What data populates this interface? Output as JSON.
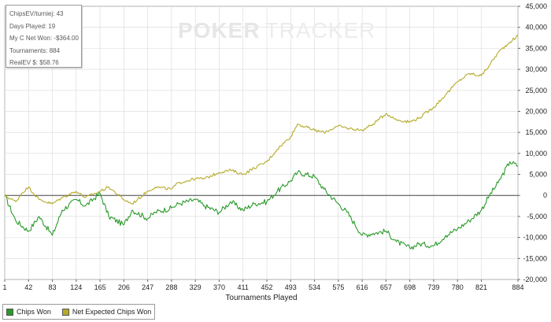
{
  "stats": {
    "chips_ev": "ChipsEV/turniej: 43",
    "days_played": "Days Played: 19",
    "net_won": "My C Net Won: -$364.00",
    "tournaments": "Tournaments: 884",
    "real_ev": "RealEV $: $58.76"
  },
  "watermark": {
    "part1": "POKER",
    "part2": "TRACKER"
  },
  "colors": {
    "chips_won": "#2a9a2a",
    "net_expected": "#b5aa2a",
    "zero_line": "#444444",
    "grid": "#d8d8d8"
  },
  "chart_data": {
    "type": "line",
    "xlabel": "Tournaments Played",
    "ylabel": "",
    "xlim": [
      1,
      884
    ],
    "ylim": [
      -20000,
      45000
    ],
    "x_ticks": [
      1,
      42,
      83,
      124,
      165,
      206,
      247,
      288,
      329,
      370,
      411,
      452,
      493,
      534,
      575,
      616,
      657,
      698,
      739,
      780,
      821,
      884
    ],
    "y_ticks": [
      "45,000",
      "40,000",
      "35,000",
      "30,000",
      "25,000",
      "20,000",
      "15,000",
      "10,000",
      "5,000",
      "0",
      "-5,000",
      "-10,000",
      "-15,000",
      "-20,000"
    ],
    "y_tick_values": [
      45000,
      40000,
      35000,
      30000,
      25000,
      20000,
      15000,
      10000,
      5000,
      0,
      -5000,
      -10000,
      -15000,
      -20000
    ],
    "grid": true,
    "legend": "bottom-left",
    "series": [
      {
        "name": "Chips Won",
        "color": "#2a9a2a",
        "x": [
          1,
          20,
          42,
          60,
          83,
          100,
          124,
          140,
          165,
          180,
          206,
          220,
          247,
          260,
          288,
          300,
          329,
          345,
          370,
          390,
          411,
          430,
          452,
          470,
          493,
          505,
          534,
          550,
          575,
          590,
          616,
          635,
          657,
          675,
          698,
          715,
          739,
          760,
          780,
          800,
          821,
          835,
          850,
          870,
          884
        ],
        "y": [
          0,
          -6000,
          -8500,
          -5000,
          -9500,
          -3500,
          -1000,
          -2500,
          500,
          -5000,
          -7000,
          -3500,
          -5500,
          -4000,
          -3000,
          -2000,
          -1000,
          -2500,
          -4000,
          -1500,
          -3500,
          -2000,
          -1500,
          1000,
          3500,
          5500,
          4500,
          1500,
          -2000,
          -4000,
          -9500,
          -9000,
          -8500,
          -11000,
          -12500,
          -11500,
          -12000,
          -9500,
          -8000,
          -6000,
          -3500,
          0,
          3000,
          8000,
          7000
        ]
      },
      {
        "name": "Net Expected Chips Won",
        "color": "#b5aa2a",
        "x": [
          1,
          20,
          30,
          42,
          60,
          83,
          100,
          124,
          140,
          165,
          180,
          206,
          220,
          247,
          260,
          288,
          300,
          329,
          345,
          370,
          390,
          411,
          430,
          452,
          470,
          493,
          505,
          534,
          550,
          575,
          590,
          616,
          635,
          657,
          675,
          698,
          715,
          739,
          760,
          780,
          800,
          821,
          835,
          850,
          870,
          884
        ],
        "y": [
          0,
          -1500,
          500,
          2000,
          -1000,
          -2000,
          -500,
          1000,
          -500,
          1000,
          2000,
          -1000,
          -2000,
          1000,
          2000,
          1500,
          3000,
          4000,
          4000,
          5500,
          6000,
          5000,
          6500,
          8000,
          11000,
          14000,
          17000,
          15500,
          15000,
          16500,
          16000,
          15500,
          17000,
          19500,
          18000,
          17500,
          18500,
          21000,
          24000,
          27000,
          29000,
          28500,
          31000,
          34000,
          36500,
          38000
        ]
      }
    ]
  },
  "legend": {
    "chips_won": "Chips Won",
    "net_expected": "Net Expected Chips Won"
  }
}
